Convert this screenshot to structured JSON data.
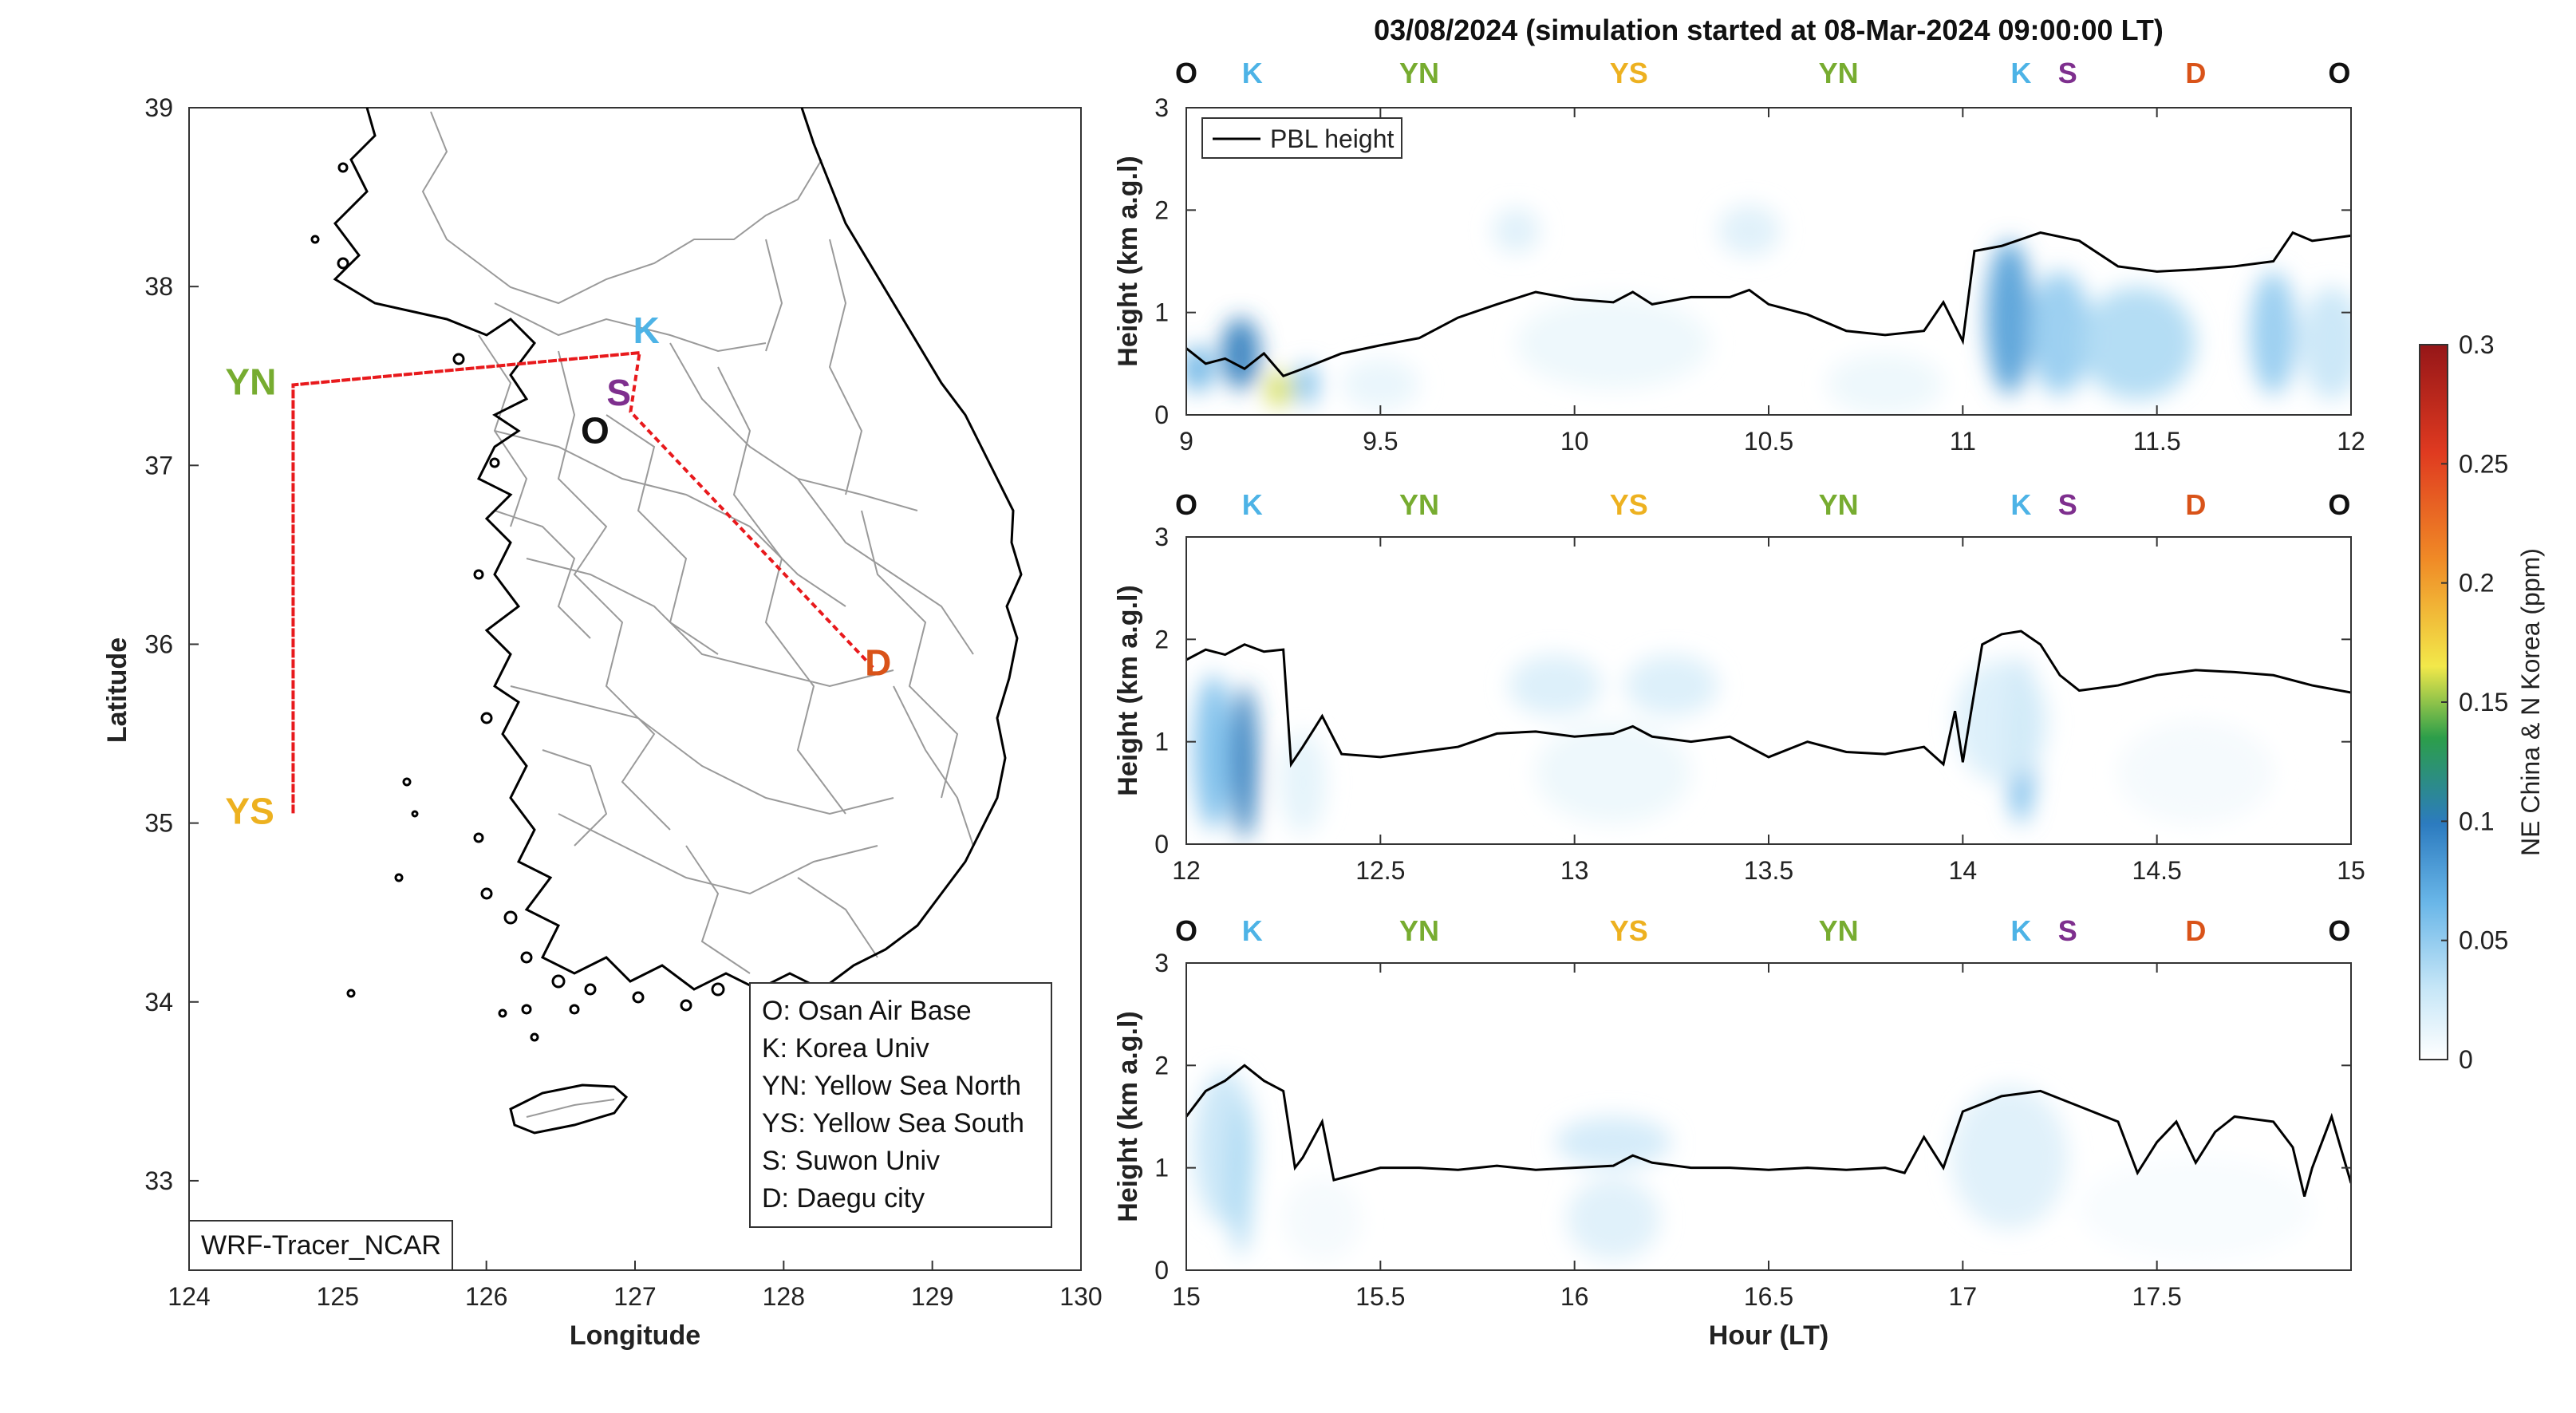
{
  "title": "03/08/2024 (simulation started at 08-Mar-2024 09:00:00 LT)",
  "colors": {
    "O": "#111111",
    "K": "#4db3e6",
    "YN": "#77ac30",
    "YS": "#edb120",
    "S": "#7e2f8e",
    "D": "#d95319",
    "track": "#e8191c",
    "pbl": "#000000",
    "coast": "#000000",
    "border": "#9a9a9a"
  },
  "map": {
    "xlabel": "Longitude",
    "ylabel": "Latitude",
    "xlim": [
      124,
      130
    ],
    "ylim": [
      32.5,
      39
    ],
    "xticks": [
      "124",
      "125",
      "126",
      "127",
      "128",
      "129",
      "130"
    ],
    "yticks": [
      "33",
      "34",
      "35",
      "36",
      "37",
      "38",
      "39"
    ],
    "watermark": "WRF-Tracer_NCAR",
    "sites": [
      {
        "code": "K",
        "lon": 127.03,
        "lat": 37.63
      },
      {
        "code": "S",
        "lon": 126.97,
        "lat": 37.3
      },
      {
        "code": "O",
        "lon": 126.85,
        "lat": 37.08
      },
      {
        "code": "D",
        "lon": 128.6,
        "lat": 35.87
      },
      {
        "code": "YN",
        "lon": 124.7,
        "lat": 37.45
      },
      {
        "code": "YS",
        "lon": 124.7,
        "lat": 35.05
      }
    ],
    "legend": [
      "O: Osan Air Base",
      "K: Korea Univ",
      "YN: Yellow Sea North",
      "YS: Yellow Sea South",
      "S: Suwon Univ",
      "D: Daegu city"
    ]
  },
  "chart_data": [
    {
      "type": "heatmap",
      "xlim": [
        9,
        12
      ],
      "ylim": [
        0,
        3
      ],
      "xticks": [
        "9",
        "9.5",
        "10",
        "10.5",
        "11",
        "11.5",
        "12"
      ],
      "yticks": [
        "0",
        "1",
        "2",
        "3"
      ],
      "ylabel": "Height (km a.g.l)",
      "legend": "PBL height",
      "route_labels": [
        {
          "code": "O",
          "x": 9.0
        },
        {
          "code": "K",
          "x": 9.17
        },
        {
          "code": "YN",
          "x": 9.6
        },
        {
          "code": "YS",
          "x": 10.14
        },
        {
          "code": "YN",
          "x": 10.68
        },
        {
          "code": "K",
          "x": 11.15
        },
        {
          "code": "S",
          "x": 11.27
        },
        {
          "code": "D",
          "x": 11.6
        },
        {
          "code": "O",
          "x": 11.97
        }
      ],
      "pbl": {
        "x": [
          9.0,
          9.05,
          9.1,
          9.15,
          9.2,
          9.25,
          9.3,
          9.4,
          9.5,
          9.6,
          9.7,
          9.8,
          9.9,
          10.0,
          10.1,
          10.15,
          10.2,
          10.3,
          10.4,
          10.45,
          10.5,
          10.6,
          10.7,
          10.8,
          10.9,
          10.95,
          11.0,
          11.03,
          11.1,
          11.2,
          11.3,
          11.4,
          11.5,
          11.6,
          11.7,
          11.8,
          11.85,
          11.9,
          12.0
        ],
        "y": [
          0.65,
          0.5,
          0.55,
          0.45,
          0.6,
          0.38,
          0.45,
          0.6,
          0.68,
          0.75,
          0.95,
          1.08,
          1.2,
          1.13,
          1.1,
          1.2,
          1.08,
          1.15,
          1.15,
          1.22,
          1.08,
          0.98,
          0.82,
          0.78,
          0.82,
          1.1,
          0.72,
          1.6,
          1.65,
          1.78,
          1.7,
          1.45,
          1.4,
          1.42,
          1.45,
          1.5,
          1.78,
          1.7,
          1.75
        ]
      },
      "tracer": [
        {
          "x": 9.03,
          "y": 0.45,
          "sx": 0.04,
          "sy": 0.22,
          "v": 0.07
        },
        {
          "x": 9.14,
          "y": 0.6,
          "sx": 0.05,
          "sy": 0.35,
          "v": 0.1
        },
        {
          "x": 9.24,
          "y": 0.25,
          "sx": 0.035,
          "sy": 0.17,
          "v": 0.16
        },
        {
          "x": 9.31,
          "y": 0.3,
          "sx": 0.03,
          "sy": 0.2,
          "v": 0.06
        },
        {
          "x": 9.5,
          "y": 0.3,
          "sx": 0.1,
          "sy": 0.25,
          "v": 0.012
        },
        {
          "x": 9.85,
          "y": 1.8,
          "sx": 0.06,
          "sy": 0.22,
          "v": 0.018
        },
        {
          "x": 10.1,
          "y": 0.7,
          "sx": 0.25,
          "sy": 0.45,
          "v": 0.01
        },
        {
          "x": 10.45,
          "y": 1.8,
          "sx": 0.08,
          "sy": 0.25,
          "v": 0.018
        },
        {
          "x": 10.8,
          "y": 0.3,
          "sx": 0.15,
          "sy": 0.3,
          "v": 0.01
        },
        {
          "x": 11.12,
          "y": 0.95,
          "sx": 0.06,
          "sy": 0.75,
          "v": 0.08
        },
        {
          "x": 11.25,
          "y": 0.8,
          "sx": 0.08,
          "sy": 0.6,
          "v": 0.05
        },
        {
          "x": 11.45,
          "y": 0.7,
          "sx": 0.15,
          "sy": 0.55,
          "v": 0.04
        },
        {
          "x": 11.8,
          "y": 0.8,
          "sx": 0.06,
          "sy": 0.6,
          "v": 0.05
        },
        {
          "x": 11.95,
          "y": 0.7,
          "sx": 0.08,
          "sy": 0.55,
          "v": 0.03
        }
      ]
    },
    {
      "type": "heatmap",
      "xlim": [
        12,
        15
      ],
      "ylim": [
        0,
        3
      ],
      "xticks": [
        "12",
        "12.5",
        "13",
        "13.5",
        "14",
        "14.5",
        "15"
      ],
      "yticks": [
        "0",
        "1",
        "2",
        "3"
      ],
      "ylabel": "Height (km a.g.l)",
      "route_labels": [
        {
          "code": "O",
          "x": 12.0
        },
        {
          "code": "K",
          "x": 12.17
        },
        {
          "code": "YN",
          "x": 12.6
        },
        {
          "code": "YS",
          "x": 13.14
        },
        {
          "code": "YN",
          "x": 13.68
        },
        {
          "code": "K",
          "x": 14.15
        },
        {
          "code": "S",
          "x": 14.27
        },
        {
          "code": "D",
          "x": 14.6
        },
        {
          "code": "O",
          "x": 14.97
        }
      ],
      "pbl": {
        "x": [
          12.0,
          12.05,
          12.1,
          12.15,
          12.2,
          12.25,
          12.27,
          12.3,
          12.35,
          12.4,
          12.5,
          12.6,
          12.7,
          12.8,
          12.9,
          13.0,
          13.1,
          13.15,
          13.2,
          13.3,
          13.4,
          13.5,
          13.6,
          13.7,
          13.8,
          13.9,
          13.95,
          13.98,
          14.0,
          14.05,
          14.1,
          14.15,
          14.2,
          14.25,
          14.3,
          14.4,
          14.5,
          14.6,
          14.7,
          14.8,
          14.9,
          15.0
        ],
        "y": [
          1.8,
          1.9,
          1.85,
          1.95,
          1.88,
          1.9,
          0.78,
          0.95,
          1.25,
          0.88,
          0.85,
          0.9,
          0.95,
          1.08,
          1.1,
          1.05,
          1.08,
          1.15,
          1.05,
          1.0,
          1.05,
          0.85,
          1.0,
          0.9,
          0.88,
          0.95,
          0.78,
          1.3,
          0.8,
          1.95,
          2.05,
          2.08,
          1.95,
          1.65,
          1.5,
          1.55,
          1.65,
          1.7,
          1.68,
          1.65,
          1.55,
          1.48
        ]
      },
      "tracer": [
        {
          "x": 12.07,
          "y": 0.9,
          "sx": 0.05,
          "sy": 0.75,
          "v": 0.06
        },
        {
          "x": 12.15,
          "y": 0.8,
          "sx": 0.035,
          "sy": 0.75,
          "v": 0.1
        },
        {
          "x": 12.3,
          "y": 0.6,
          "sx": 0.06,
          "sy": 0.5,
          "v": 0.015
        },
        {
          "x": 12.95,
          "y": 1.55,
          "sx": 0.12,
          "sy": 0.3,
          "v": 0.02
        },
        {
          "x": 13.25,
          "y": 1.55,
          "sx": 0.12,
          "sy": 0.3,
          "v": 0.02
        },
        {
          "x": 13.1,
          "y": 0.7,
          "sx": 0.2,
          "sy": 0.5,
          "v": 0.01
        },
        {
          "x": 14.15,
          "y": 1.0,
          "sx": 0.04,
          "sy": 0.8,
          "v": 0.06
        },
        {
          "x": 14.1,
          "y": 1.2,
          "sx": 0.12,
          "sy": 0.6,
          "v": 0.02
        },
        {
          "x": 14.6,
          "y": 0.7,
          "sx": 0.2,
          "sy": 0.5,
          "v": 0.006
        }
      ]
    },
    {
      "type": "heatmap",
      "xlim": [
        15,
        18
      ],
      "ylim": [
        0,
        3
      ],
      "xticks": [
        "15",
        "15.5",
        "16",
        "16.5",
        "17",
        "17.5"
      ],
      "yticks": [
        "0",
        "1",
        "2",
        "3"
      ],
      "ylabel": "Height (km a.g.l)",
      "xlabel": "Hour (LT)",
      "route_labels": [
        {
          "code": "O",
          "x": 15.0
        },
        {
          "code": "K",
          "x": 15.17
        },
        {
          "code": "YN",
          "x": 15.6
        },
        {
          "code": "YS",
          "x": 16.14
        },
        {
          "code": "YN",
          "x": 16.68
        },
        {
          "code": "K",
          "x": 17.15
        },
        {
          "code": "S",
          "x": 17.27
        },
        {
          "code": "D",
          "x": 17.6
        },
        {
          "code": "O",
          "x": 17.97
        }
      ],
      "pbl": {
        "x": [
          15.0,
          15.05,
          15.1,
          15.15,
          15.2,
          15.25,
          15.28,
          15.3,
          15.35,
          15.38,
          15.4,
          15.5,
          15.6,
          15.7,
          15.8,
          15.9,
          16.0,
          16.1,
          16.15,
          16.2,
          16.3,
          16.4,
          16.5,
          16.6,
          16.7,
          16.8,
          16.85,
          16.9,
          16.95,
          17.0,
          17.1,
          17.2,
          17.3,
          17.4,
          17.45,
          17.5,
          17.55,
          17.6,
          17.65,
          17.7,
          17.8,
          17.85,
          17.88,
          17.9,
          17.95,
          18.0
        ],
        "y": [
          1.5,
          1.75,
          1.85,
          2.0,
          1.85,
          1.75,
          1.0,
          1.1,
          1.45,
          0.88,
          0.9,
          1.0,
          1.0,
          0.98,
          1.02,
          0.98,
          1.0,
          1.02,
          1.12,
          1.05,
          1.0,
          1.0,
          0.98,
          1.0,
          0.98,
          1.0,
          0.95,
          1.3,
          1.0,
          1.55,
          1.7,
          1.75,
          1.6,
          1.45,
          0.95,
          1.25,
          1.45,
          1.05,
          1.35,
          1.5,
          1.45,
          1.2,
          0.72,
          1.0,
          1.5,
          0.85
        ]
      },
      "tracer": [
        {
          "x": 15.1,
          "y": 1.2,
          "sx": 0.08,
          "sy": 0.75,
          "v": 0.03
        },
        {
          "x": 15.14,
          "y": 0.9,
          "sx": 0.03,
          "sy": 0.75,
          "v": 0.04
        },
        {
          "x": 15.35,
          "y": 0.5,
          "sx": 0.1,
          "sy": 0.4,
          "v": 0.006
        },
        {
          "x": 16.1,
          "y": 1.25,
          "sx": 0.15,
          "sy": 0.25,
          "v": 0.025
        },
        {
          "x": 16.1,
          "y": 0.5,
          "sx": 0.12,
          "sy": 0.4,
          "v": 0.018
        },
        {
          "x": 17.12,
          "y": 1.1,
          "sx": 0.15,
          "sy": 0.7,
          "v": 0.018
        },
        {
          "x": 17.6,
          "y": 0.6,
          "sx": 0.3,
          "sy": 0.5,
          "v": 0.004
        }
      ]
    }
  ],
  "colorbar": {
    "label": "NE China & N Korea (ppm)",
    "min": 0,
    "max": 0.3,
    "ticks": [
      "0",
      "0.05",
      "0.1",
      "0.15",
      "0.2",
      "0.25",
      "0.3"
    ]
  }
}
